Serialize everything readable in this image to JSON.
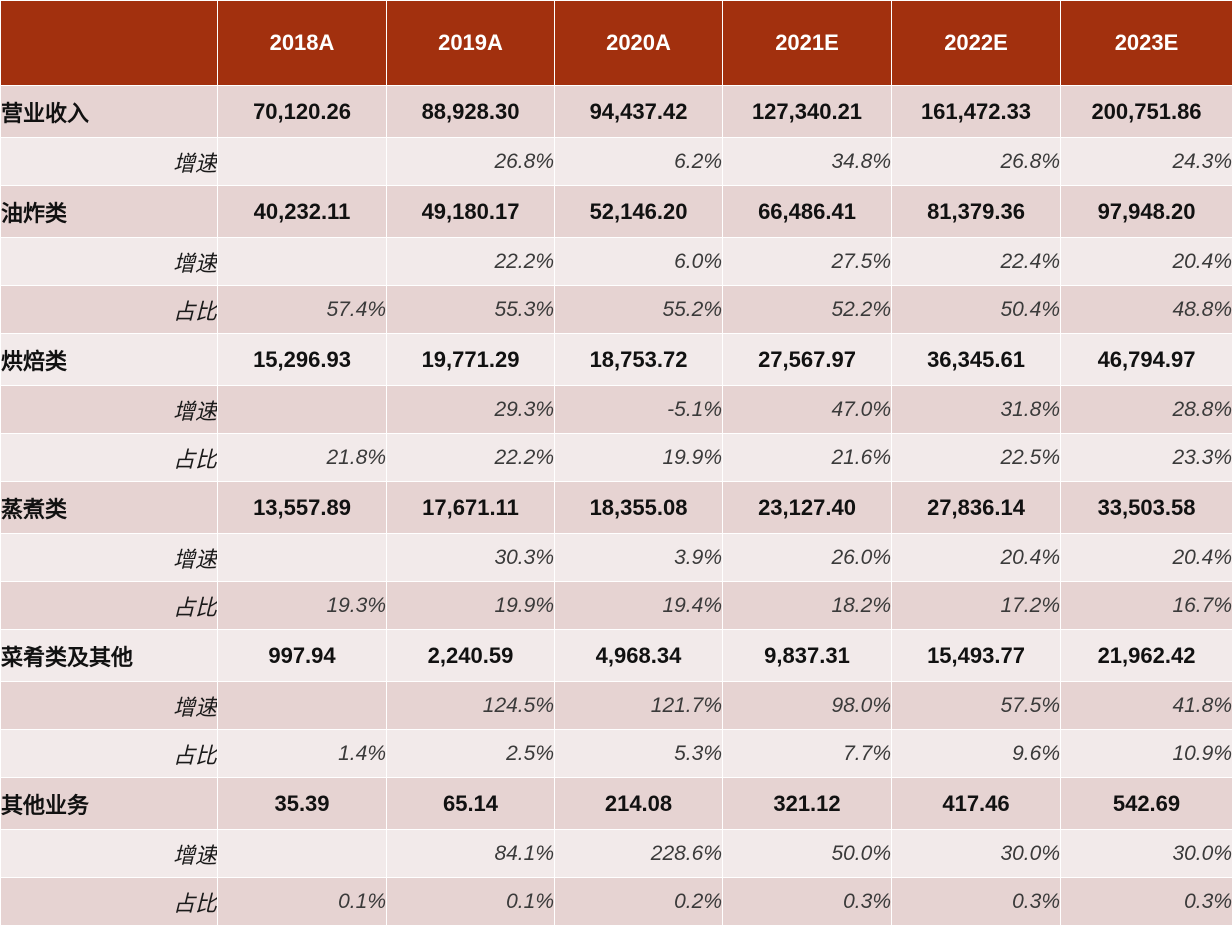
{
  "header": {
    "corner": "",
    "years": [
      "2018A",
      "2019A",
      "2020A",
      "2021E",
      "2022E",
      "2023E"
    ]
  },
  "rows": [
    {
      "type": "category",
      "label": "营业收入",
      "values": [
        "70,120.26",
        "88,928.30",
        "94,437.42",
        "127,340.21",
        "161,472.33",
        "200,751.86"
      ]
    },
    {
      "type": "sub",
      "label": "增速",
      "values": [
        "",
        "26.8%",
        "6.2%",
        "34.8%",
        "26.8%",
        "24.3%"
      ]
    },
    {
      "type": "category",
      "label": "油炸类",
      "values": [
        "40,232.11",
        "49,180.17",
        "52,146.20",
        "66,486.41",
        "81,379.36",
        "97,948.20"
      ]
    },
    {
      "type": "sub",
      "label": "增速",
      "values": [
        "",
        "22.2%",
        "6.0%",
        "27.5%",
        "22.4%",
        "20.4%"
      ]
    },
    {
      "type": "sub",
      "label": "占比",
      "values": [
        "57.4%",
        "55.3%",
        "55.2%",
        "52.2%",
        "50.4%",
        "48.8%"
      ]
    },
    {
      "type": "category",
      "label": "烘焙类",
      "values": [
        "15,296.93",
        "19,771.29",
        "18,753.72",
        "27,567.97",
        "36,345.61",
        "46,794.97"
      ]
    },
    {
      "type": "sub",
      "label": "增速",
      "values": [
        "",
        "29.3%",
        "-5.1%",
        "47.0%",
        "31.8%",
        "28.8%"
      ]
    },
    {
      "type": "sub",
      "label": "占比",
      "values": [
        "21.8%",
        "22.2%",
        "19.9%",
        "21.6%",
        "22.5%",
        "23.3%"
      ]
    },
    {
      "type": "category",
      "label": "蒸煮类",
      "values": [
        "13,557.89",
        "17,671.11",
        "18,355.08",
        "23,127.40",
        "27,836.14",
        "33,503.58"
      ]
    },
    {
      "type": "sub",
      "label": "增速",
      "values": [
        "",
        "30.3%",
        "3.9%",
        "26.0%",
        "20.4%",
        "20.4%"
      ]
    },
    {
      "type": "sub",
      "label": "占比",
      "values": [
        "19.3%",
        "19.9%",
        "19.4%",
        "18.2%",
        "17.2%",
        "16.7%"
      ]
    },
    {
      "type": "category",
      "label": "菜肴类及其他",
      "values": [
        "997.94",
        "2,240.59",
        "4,968.34",
        "9,837.31",
        "15,493.77",
        "21,962.42"
      ]
    },
    {
      "type": "sub",
      "label": "增速",
      "values": [
        "",
        "124.5%",
        "121.7%",
        "98.0%",
        "57.5%",
        "41.8%"
      ]
    },
    {
      "type": "sub",
      "label": "占比",
      "values": [
        "1.4%",
        "2.5%",
        "5.3%",
        "7.7%",
        "9.6%",
        "10.9%"
      ]
    },
    {
      "type": "category",
      "label": "其他业务",
      "values": [
        "35.39",
        "65.14",
        "214.08",
        "321.12",
        "417.46",
        "542.69"
      ]
    },
    {
      "type": "sub",
      "label": "增速",
      "values": [
        "",
        "84.1%",
        "228.6%",
        "50.0%",
        "30.0%",
        "30.0%"
      ]
    },
    {
      "type": "sub",
      "label": "占比",
      "values": [
        "0.1%",
        "0.1%",
        "0.2%",
        "0.3%",
        "0.3%",
        "0.3%"
      ]
    }
  ]
}
